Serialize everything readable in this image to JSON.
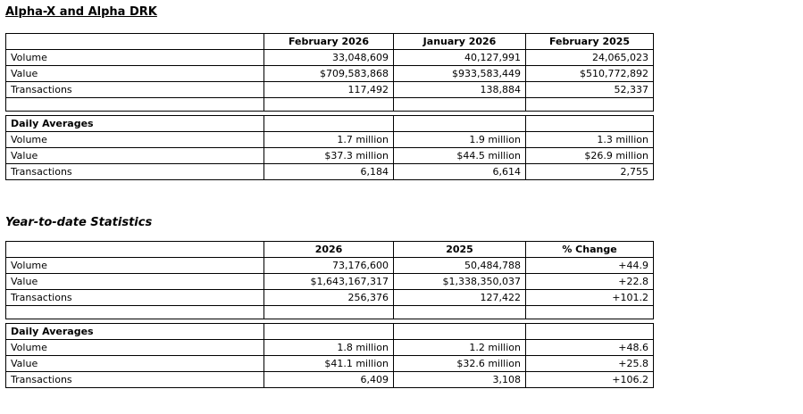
{
  "section_monthly": {
    "title": "Alpha-X and Alpha DRK",
    "columns": [
      "February 2026",
      "January 2026",
      "February 2025"
    ],
    "rows": [
      {
        "label": "Volume",
        "values": [
          "33,048,609",
          "40,127,991",
          "24,065,023"
        ]
      },
      {
        "label": "Value",
        "values": [
          "$709,583,868",
          "$933,583,449",
          "$510,772,892"
        ]
      },
      {
        "label": "Transactions",
        "values": [
          "117,492",
          "138,884",
          "52,337"
        ]
      }
    ],
    "daily": {
      "header": "Daily Averages",
      "rows": [
        {
          "label": "Volume",
          "values": [
            "1.7 million",
            "1.9 million",
            "1.3 million"
          ]
        },
        {
          "label": "Value",
          "values": [
            "$37.3 million",
            "$44.5 million",
            "$26.9 million"
          ]
        },
        {
          "label": "Transactions",
          "values": [
            "6,184",
            "6,614",
            "2,755"
          ]
        }
      ]
    }
  },
  "section_ytd": {
    "title": "Year-to-date Statistics",
    "columns": [
      "2026",
      "2025",
      "% Change"
    ],
    "rows": [
      {
        "label": "Volume",
        "values": [
          "73,176,600",
          "50,484,788",
          "+44.9"
        ]
      },
      {
        "label": "Value",
        "values": [
          "$1,643,167,317",
          "$1,338,350,037",
          "+22.8"
        ]
      },
      {
        "label": "Transactions",
        "values": [
          "256,376",
          "127,422",
          "+101.2"
        ]
      }
    ],
    "daily": {
      "header": "Daily Averages",
      "rows": [
        {
          "label": "Volume",
          "values": [
            "1.8 million",
            "1.2 million",
            "+48.6"
          ]
        },
        {
          "label": "Value",
          "values": [
            "$41.1 million",
            "$32.6 million",
            "+25.8"
          ]
        },
        {
          "label": "Transactions",
          "values": [
            "6,409",
            "3,108",
            "+106.2"
          ]
        }
      ]
    }
  }
}
